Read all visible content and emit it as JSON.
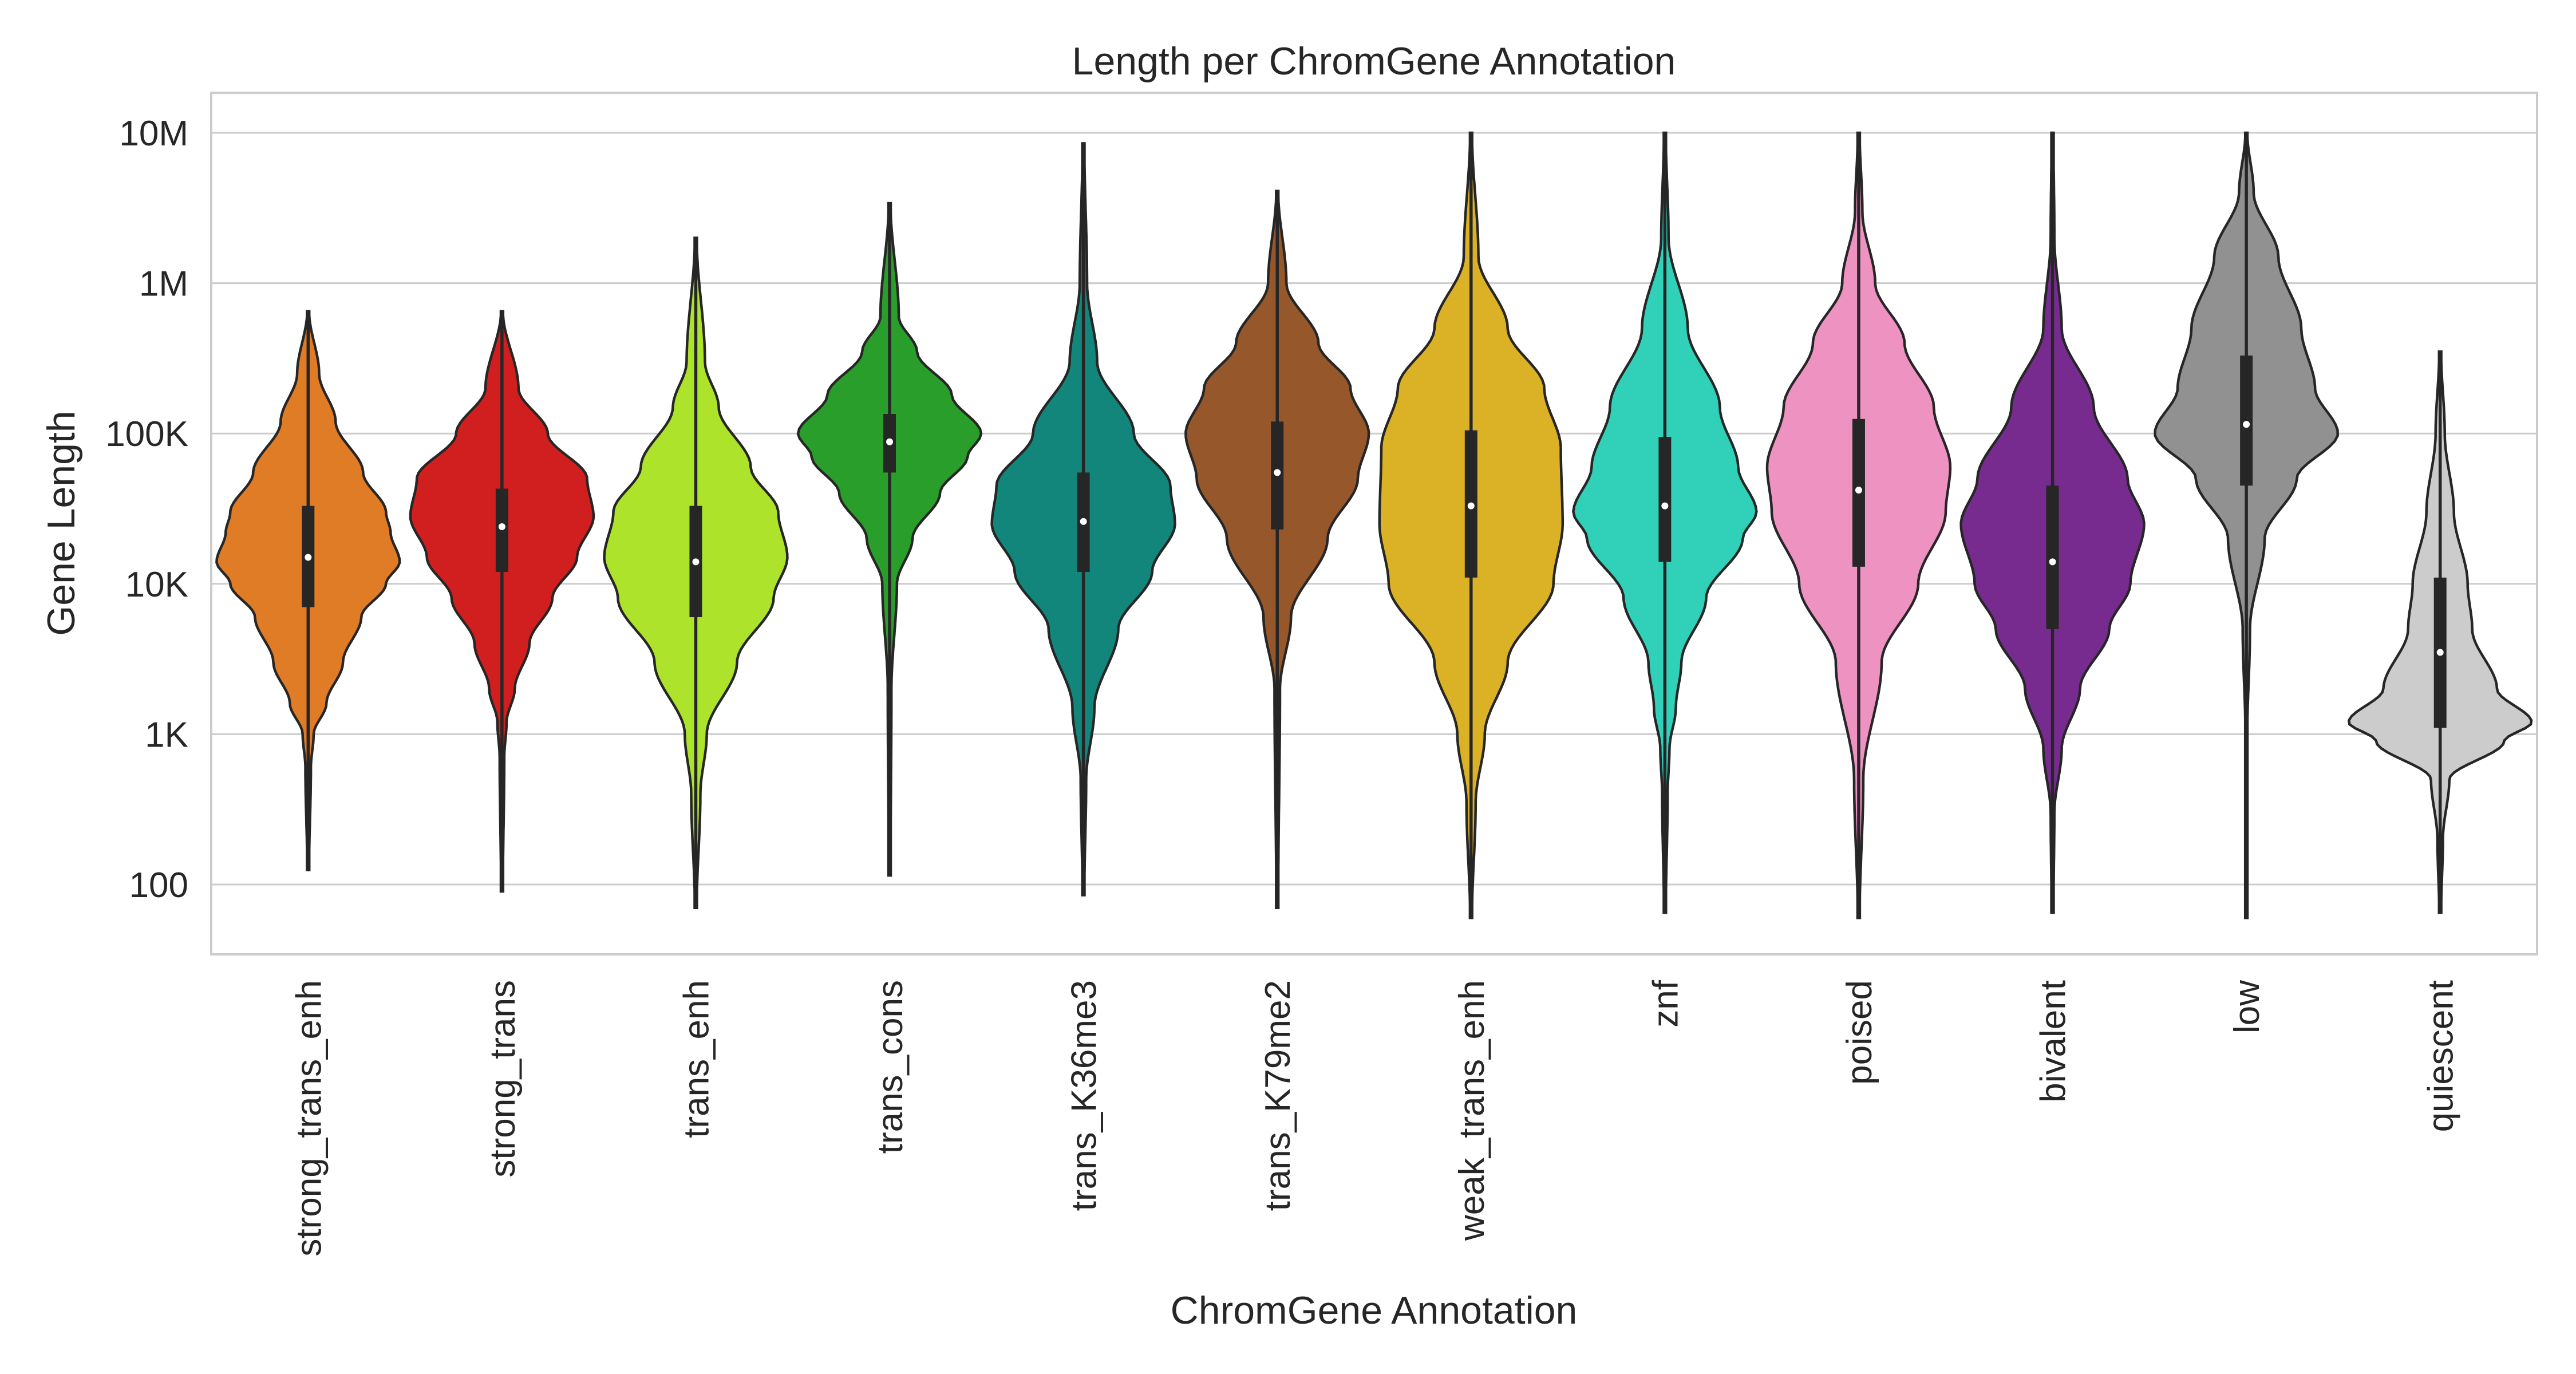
{
  "chart_data": {
    "type": "violin",
    "title": "Length per ChromGene Annotation",
    "xlabel": "ChromGene Annotation",
    "ylabel": "Gene Length",
    "yscale": "log",
    "ylim": [
      30,
      20000000
    ],
    "yticks": [
      {
        "value": 100,
        "label": "100"
      },
      {
        "value": 1000,
        "label": "1K"
      },
      {
        "value": 10000,
        "label": "10K"
      },
      {
        "value": 100000,
        "label": "100K"
      },
      {
        "value": 1000000,
        "label": "1M"
      },
      {
        "value": 10000000,
        "label": "10M"
      }
    ],
    "grid": "horizontal",
    "categories": [
      "strong_trans_enh",
      "strong_trans",
      "trans_enh",
      "trans_cons",
      "trans_K36me3",
      "trans_K79me2",
      "weak_trans_enh",
      "znf",
      "poised",
      "bivalent",
      "low",
      "quiescent"
    ],
    "colors": [
      "#e07b26",
      "#d11f1f",
      "#aee32c",
      "#2a9e2a",
      "#12867a",
      "#96572a",
      "#dbb125",
      "#31d1b9",
      "#ee92c2",
      "#772b8f",
      "#919191",
      "#cccccc"
    ],
    "series": [
      {
        "min": 125,
        "q1": 7000,
        "median": 15000,
        "q3": 33000,
        "max": 650000,
        "density": [
          [
            125,
            0.01
          ],
          [
            600,
            0.03
          ],
          [
            1000,
            0.06
          ],
          [
            1600,
            0.2
          ],
          [
            3000,
            0.38
          ],
          [
            6000,
            0.58
          ],
          [
            10000,
            0.85
          ],
          [
            14000,
            1.0
          ],
          [
            22000,
            0.9
          ],
          [
            30000,
            0.85
          ],
          [
            55000,
            0.6
          ],
          [
            120000,
            0.3
          ],
          [
            250000,
            0.12
          ],
          [
            650000,
            0.01
          ]
        ]
      },
      {
        "min": 90,
        "q1": 12000,
        "median": 24000,
        "q3": 43000,
        "max": 650000,
        "density": [
          [
            90,
            0.01
          ],
          [
            700,
            0.025
          ],
          [
            1200,
            0.05
          ],
          [
            2000,
            0.14
          ],
          [
            4000,
            0.3
          ],
          [
            8000,
            0.55
          ],
          [
            15000,
            0.82
          ],
          [
            28000,
            1.0
          ],
          [
            50000,
            0.93
          ],
          [
            100000,
            0.5
          ],
          [
            200000,
            0.18
          ],
          [
            650000,
            0.01
          ]
        ]
      },
      {
        "min": 70,
        "q1": 6000,
        "median": 14000,
        "q3": 33000,
        "max": 2000000,
        "density": [
          [
            70,
            0.01
          ],
          [
            400,
            0.05
          ],
          [
            1000,
            0.12
          ],
          [
            3000,
            0.45
          ],
          [
            8000,
            0.85
          ],
          [
            15000,
            1.0
          ],
          [
            30000,
            0.9
          ],
          [
            60000,
            0.6
          ],
          [
            150000,
            0.25
          ],
          [
            300000,
            0.1
          ],
          [
            2000000,
            0.01
          ]
        ]
      },
      {
        "min": 115,
        "q1": 55000,
        "median": 88000,
        "q3": 135000,
        "max": 3400000,
        "density": [
          [
            115,
            0.01
          ],
          [
            2000,
            0.02
          ],
          [
            10000,
            0.08
          ],
          [
            20000,
            0.25
          ],
          [
            40000,
            0.55
          ],
          [
            70000,
            0.85
          ],
          [
            100000,
            1.0
          ],
          [
            180000,
            0.68
          ],
          [
            350000,
            0.3
          ],
          [
            600000,
            0.1
          ],
          [
            3400000,
            0.01
          ]
        ]
      },
      {
        "min": 85,
        "q1": 12000,
        "median": 26000,
        "q3": 55000,
        "max": 8500000,
        "density": [
          [
            85,
            0.01
          ],
          [
            500,
            0.03
          ],
          [
            1500,
            0.12
          ],
          [
            5000,
            0.38
          ],
          [
            12000,
            0.75
          ],
          [
            25000,
            1.0
          ],
          [
            45000,
            0.95
          ],
          [
            100000,
            0.55
          ],
          [
            300000,
            0.15
          ],
          [
            1000000,
            0.04
          ],
          [
            8500000,
            0.01
          ]
        ]
      },
      {
        "min": 70,
        "q1": 23000,
        "median": 55000,
        "q3": 120000,
        "max": 4100000,
        "density": [
          [
            70,
            0.01
          ],
          [
            2000,
            0.03
          ],
          [
            6000,
            0.15
          ],
          [
            20000,
            0.55
          ],
          [
            50000,
            0.88
          ],
          [
            100000,
            1.0
          ],
          [
            200000,
            0.8
          ],
          [
            400000,
            0.45
          ],
          [
            1000000,
            0.1
          ],
          [
            4100000,
            0.01
          ]
        ]
      },
      {
        "min": 60,
        "q1": 11000,
        "median": 33000,
        "q3": 105000,
        "max": 10000000,
        "density": [
          [
            60,
            0.01
          ],
          [
            350,
            0.05
          ],
          [
            1000,
            0.15
          ],
          [
            3000,
            0.4
          ],
          [
            10000,
            0.9
          ],
          [
            25000,
            1.0
          ],
          [
            80000,
            0.98
          ],
          [
            200000,
            0.8
          ],
          [
            500000,
            0.4
          ],
          [
            1500000,
            0.08
          ],
          [
            10000000,
            0.01
          ]
        ]
      },
      {
        "min": 65,
        "q1": 14000,
        "median": 33000,
        "q3": 95000,
        "max": 10000000,
        "density": [
          [
            65,
            0.01
          ],
          [
            400,
            0.03
          ],
          [
            800,
            0.05
          ],
          [
            1500,
            0.12
          ],
          [
            3000,
            0.18
          ],
          [
            8000,
            0.45
          ],
          [
            20000,
            0.85
          ],
          [
            30000,
            1.0
          ],
          [
            60000,
            0.8
          ],
          [
            150000,
            0.6
          ],
          [
            500000,
            0.25
          ],
          [
            2000000,
            0.04
          ],
          [
            10000000,
            0.01
          ]
        ]
      },
      {
        "min": 60,
        "q1": 13000,
        "median": 42000,
        "q3": 125000,
        "max": 10000000,
        "density": [
          [
            60,
            0.01
          ],
          [
            500,
            0.05
          ],
          [
            3000,
            0.25
          ],
          [
            10000,
            0.65
          ],
          [
            30000,
            0.95
          ],
          [
            60000,
            1.0
          ],
          [
            150000,
            0.82
          ],
          [
            400000,
            0.5
          ],
          [
            1000000,
            0.18
          ],
          [
            3000000,
            0.04
          ],
          [
            10000000,
            0.01
          ]
        ]
      },
      {
        "min": 65,
        "q1": 5000,
        "median": 14000,
        "q3": 45000,
        "max": 10000000,
        "density": [
          [
            65,
            0.01
          ],
          [
            300,
            0.02
          ],
          [
            800,
            0.1
          ],
          [
            2000,
            0.3
          ],
          [
            5000,
            0.62
          ],
          [
            10000,
            0.85
          ],
          [
            25000,
            1.0
          ],
          [
            50000,
            0.82
          ],
          [
            150000,
            0.45
          ],
          [
            500000,
            0.1
          ],
          [
            2000000,
            0.02
          ],
          [
            10000000,
            0.01
          ]
        ]
      },
      {
        "min": 60,
        "q1": 45000,
        "median": 115000,
        "q3": 330000,
        "max": 10000000,
        "density": [
          [
            60,
            0.01
          ],
          [
            1000,
            0.01
          ],
          [
            5000,
            0.04
          ],
          [
            20000,
            0.2
          ],
          [
            50000,
            0.55
          ],
          [
            100000,
            1.0
          ],
          [
            200000,
            0.75
          ],
          [
            500000,
            0.6
          ],
          [
            1500000,
            0.35
          ],
          [
            4000000,
            0.08
          ],
          [
            10000000,
            0.01
          ]
        ]
      },
      {
        "min": 65,
        "q1": 1100,
        "median": 3500,
        "q3": 11000,
        "max": 350000,
        "density": [
          [
            65,
            0.01
          ],
          [
            200,
            0.03
          ],
          [
            500,
            0.1
          ],
          [
            900,
            0.7
          ],
          [
            1200,
            1.0
          ],
          [
            2000,
            0.62
          ],
          [
            5000,
            0.35
          ],
          [
            10000,
            0.3
          ],
          [
            30000,
            0.15
          ],
          [
            100000,
            0.05
          ],
          [
            350000,
            0.01
          ]
        ]
      }
    ]
  }
}
